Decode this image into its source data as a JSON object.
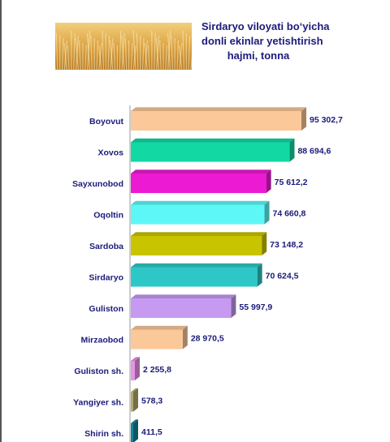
{
  "title_lines": [
    "Sirdaryo viloyati bo‘yicha",
    "donli ekinlar yetishtirish",
    "hajmi, tonna"
  ],
  "chart_data": {
    "type": "bar",
    "orientation": "horizontal",
    "title": "Sirdaryo viloyati bo‘yicha donli ekinlar yetishtirish hajmi, tonna",
    "categories": [
      "Boyovut",
      "Xovos",
      "Sayxunobod",
      "Oqoltin",
      "Sardoba",
      "Sirdaryo",
      "Guliston",
      "Mirzaobod",
      "Guliston sh.",
      "Yangiyer sh.",
      "Shirin sh."
    ],
    "values": [
      95302.7,
      88694.6,
      75612.2,
      74660.8,
      73148.2,
      70624.5,
      55997.9,
      28970.5,
      2255.8,
      578.3,
      411.5
    ],
    "value_labels": [
      "95 302,7",
      "88 694,6",
      "75 612,2",
      "74 660,8",
      "73 148,2",
      "70 624,5",
      "55 997,9",
      "28 970,5",
      "2 255,8",
      "578,3",
      "411,5"
    ],
    "colors": [
      "#fbc89a",
      "#12d9a4",
      "#ec1ad2",
      "#5ef7f7",
      "#c9c400",
      "#2ec7c7",
      "#c79af2",
      "#fbc89a",
      "#e692e6",
      "#b3ab6b",
      "#13859a"
    ],
    "xlim": [
      0,
      100000
    ],
    "grid": false,
    "legend": "none"
  }
}
